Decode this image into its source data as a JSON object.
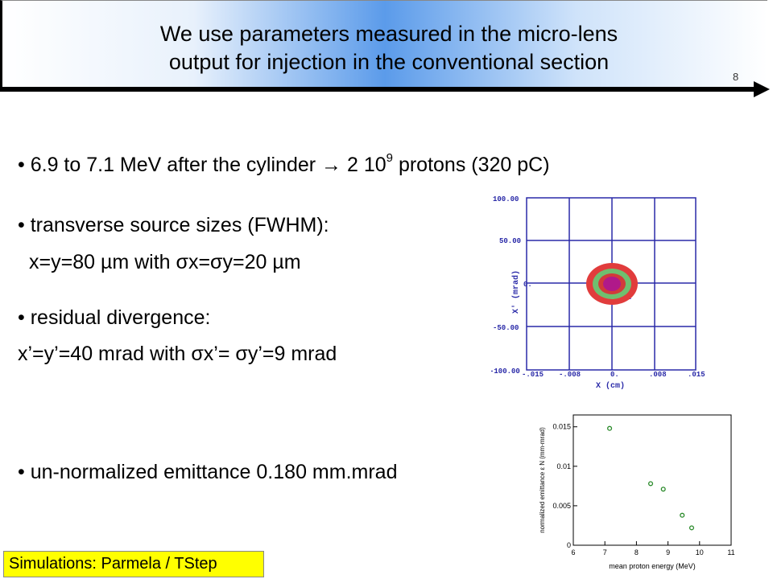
{
  "header": {
    "title_line1": "We use parameters measured in the micro-lens",
    "title_line2": "output for injection in the conventional section",
    "slide_number": "8"
  },
  "bullets": {
    "b1_pre": "6.9 to 7.1 MeV after the cylinder",
    "b1_arrow": "→",
    "b1_num": "2 10",
    "b1_exp": "9",
    "b1_post": " protons (320 pC)",
    "b2": "transverse source sizes (FWHM):",
    "b2_sub": "x=y=80 µm with σx=σy=20 µm",
    "b3": "residual divergence:",
    "b3_sub": "x’=y’=40 mrad with σx’= σy’=9 mrad",
    "b4": "un-normalized emittance 0.180 mm.mrad",
    "bullet_char": "•"
  },
  "phase_space_plot": {
    "y_ticks": [
      "100.00",
      "50.00",
      "0.",
      "-50.00",
      "-100.00"
    ],
    "x_ticks": [
      "-.015",
      "-.008",
      "0.",
      ".008",
      ".015"
    ],
    "xlabel": "X (cm)",
    "ylabel": "X' (mrad)",
    "colors": {
      "frame": "#2a2aa8",
      "outer": "#1a1aee",
      "mid": "#e13c3c",
      "ring": "#6fbf6f",
      "core": "#b0198a"
    }
  },
  "chart_data": {
    "type": "scatter",
    "xlabel": "mean proton energy (MeV)",
    "ylabel": "normalized emittance ε N (mm-mrad)",
    "x_ticks": [
      "6",
      "7",
      "8",
      "9",
      "10",
      "11"
    ],
    "y_ticks": [
      "0",
      "0.005",
      "0.01",
      "0.015"
    ],
    "xlim": [
      6,
      11
    ],
    "ylim": [
      0,
      0.0165
    ],
    "points": [
      {
        "x": 7.15,
        "y": 0.0148
      },
      {
        "x": 8.45,
        "y": 0.0078
      },
      {
        "x": 8.85,
        "y": 0.0071
      },
      {
        "x": 9.45,
        "y": 0.0038
      },
      {
        "x": 9.75,
        "y": 0.0022
      }
    ],
    "marker_color": "#2a8a2a"
  },
  "footer": {
    "text": "Simulations: Parmela / TStep"
  }
}
